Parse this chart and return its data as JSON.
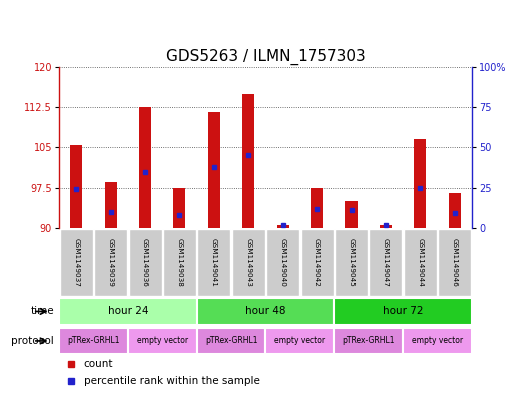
{
  "title": "GDS5263 / ILMN_1757303",
  "samples": [
    "GSM1149037",
    "GSM1149039",
    "GSM1149036",
    "GSM1149038",
    "GSM1149041",
    "GSM1149043",
    "GSM1149040",
    "GSM1149042",
    "GSM1149045",
    "GSM1149047",
    "GSM1149044",
    "GSM1149046"
  ],
  "count_values": [
    105.5,
    98.5,
    112.5,
    97.5,
    111.5,
    115.0,
    90.5,
    97.5,
    95.0,
    90.5,
    106.5,
    96.5
  ],
  "percentile_values": [
    24,
    10,
    35,
    8,
    38,
    45,
    2,
    12,
    11,
    2,
    25,
    9
  ],
  "ylim_left": [
    90,
    120
  ],
  "ylim_right": [
    0,
    100
  ],
  "yticks_left": [
    90,
    97.5,
    105,
    112.5,
    120
  ],
  "yticks_right": [
    0,
    25,
    50,
    75,
    100
  ],
  "bar_color": "#cc1111",
  "dot_color": "#2222cc",
  "bar_bottom": 90,
  "time_groups": [
    {
      "label": "hour 24",
      "start": 0,
      "end": 4,
      "color": "#aaffaa"
    },
    {
      "label": "hour 48",
      "start": 4,
      "end": 8,
      "color": "#55dd55"
    },
    {
      "label": "hour 72",
      "start": 8,
      "end": 12,
      "color": "#22cc22"
    }
  ],
  "protocol_groups": [
    {
      "label": "pTRex-GRHL1",
      "start": 0,
      "end": 2,
      "color": "#dd88dd"
    },
    {
      "label": "empty vector",
      "start": 2,
      "end": 4,
      "color": "#ee99ee"
    },
    {
      "label": "pTRex-GRHL1",
      "start": 4,
      "end": 6,
      "color": "#dd88dd"
    },
    {
      "label": "empty vector",
      "start": 6,
      "end": 8,
      "color": "#ee99ee"
    },
    {
      "label": "pTRex-GRHL1",
      "start": 8,
      "end": 10,
      "color": "#dd88dd"
    },
    {
      "label": "empty vector",
      "start": 10,
      "end": 12,
      "color": "#ee99ee"
    }
  ],
  "sample_box_color": "#cccccc",
  "background_color": "#ffffff",
  "grid_color": "#000000",
  "title_fontsize": 11,
  "tick_fontsize": 7,
  "bar_width": 0.35
}
